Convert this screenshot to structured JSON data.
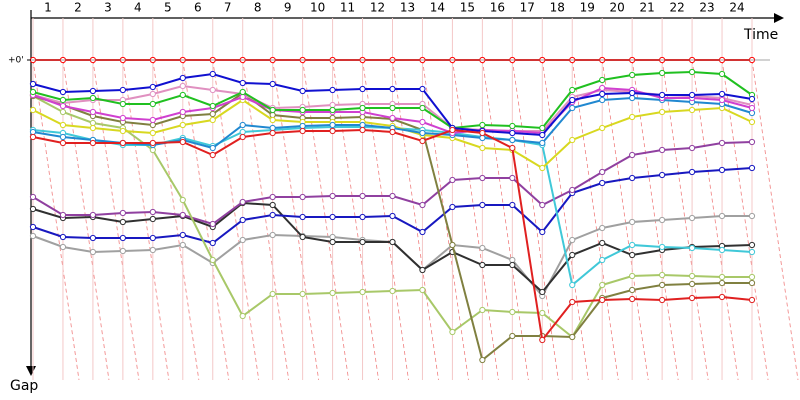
{
  "chart_data": {
    "type": "line",
    "x_label": "Time",
    "y_label": "Gap",
    "x": [
      0,
      1,
      2,
      3,
      4,
      5,
      6,
      7,
      8,
      9,
      10,
      11,
      12,
      13,
      14,
      15,
      16,
      17,
      18,
      19,
      20,
      21,
      22,
      23,
      24
    ],
    "xlim": [
      0,
      24
    ],
    "xticks": [
      {
        "value": 0.5,
        "label": "1"
      },
      {
        "value": 1.5,
        "label": "2"
      },
      {
        "value": 2.5,
        "label": "3"
      },
      {
        "value": 3.5,
        "label": "4"
      },
      {
        "value": 4.5,
        "label": "5"
      },
      {
        "value": 5.5,
        "label": "6"
      },
      {
        "value": 6.5,
        "label": "7"
      },
      {
        "value": 7.5,
        "label": "8"
      },
      {
        "value": 8.5,
        "label": "9"
      },
      {
        "value": 9.5,
        "label": "10"
      },
      {
        "value": 10.5,
        "label": "11"
      },
      {
        "value": 11.5,
        "label": "12"
      },
      {
        "value": 12.5,
        "label": "13"
      },
      {
        "value": 13.5,
        "label": "14"
      },
      {
        "value": 14.5,
        "label": "15"
      },
      {
        "value": 15.5,
        "label": "16"
      },
      {
        "value": 16.5,
        "label": "17"
      },
      {
        "value": 17.5,
        "label": "18"
      },
      {
        "value": 18.5,
        "label": "19"
      },
      {
        "value": 19.5,
        "label": "20"
      },
      {
        "value": 20.5,
        "label": "21"
      },
      {
        "value": 21.5,
        "label": "22"
      },
      {
        "value": 22.5,
        "label": "23"
      },
      {
        "value": 23.5,
        "label": "24"
      }
    ],
    "ylim": [
      -42,
      330
    ],
    "yticks": [
      {
        "value": 0,
        "label": "+0'"
      }
    ],
    "series": [
      {
        "color": "#ff0000",
        "values": [
          0,
          0,
          0,
          0,
          0,
          0,
          0,
          0,
          0,
          0,
          0,
          0,
          0,
          0,
          0,
          0,
          0,
          0,
          0,
          0,
          0,
          0,
          0,
          0,
          0
        ]
      },
      {
        "color": "#a0a0a0",
        "values": [
          176,
          187,
          192,
          191,
          190,
          185,
          203,
          180,
          175,
          176,
          177,
          180,
          182,
          210,
          185,
          188,
          200,
          236,
          180,
          168,
          162,
          160,
          158,
          156,
          156
        ]
      },
      {
        "color": "#303030",
        "values": [
          149,
          158,
          157,
          162,
          159,
          156,
          167,
          143,
          145,
          177,
          182,
          182,
          182,
          210,
          192,
          205,
          205,
          232,
          195,
          183,
          195,
          190,
          187,
          186,
          185
        ]
      },
      {
        "color": "#1818c0",
        "values": [
          167,
          177,
          178,
          178,
          178,
          175,
          183,
          160,
          155,
          157,
          157,
          157,
          156,
          172,
          147,
          145,
          145,
          172,
          133,
          123,
          118,
          115,
          112,
          110,
          108
        ]
      },
      {
        "color": "#9040a0",
        "values": [
          137,
          155,
          155,
          153,
          152,
          155,
          164,
          142,
          137,
          137,
          136,
          136,
          136,
          145,
          120,
          118,
          118,
          145,
          130,
          112,
          95,
          90,
          88,
          83,
          82
        ]
      },
      {
        "color": "#a8c868",
        "values": [
          36,
          52,
          63,
          68,
          90,
          140,
          200,
          256,
          234,
          234,
          233,
          232,
          231,
          230,
          272,
          250,
          252,
          253,
          277,
          225,
          216,
          215,
          216,
          217,
          217
        ]
      },
      {
        "color": "#808040",
        "values": [
          36,
          45,
          56,
          62,
          65,
          56,
          54,
          33,
          55,
          58,
          58,
          57,
          59,
          70,
          185,
          300,
          276,
          276,
          277,
          238,
          230,
          225,
          224,
          223,
          223
        ]
      },
      {
        "color": "#40c8d8",
        "values": [
          70,
          73,
          80,
          85,
          85,
          78,
          86,
          72,
          70,
          68,
          67,
          67,
          68,
          70,
          73,
          77,
          80,
          85,
          225,
          200,
          185,
          187,
          188,
          190,
          192
        ]
      },
      {
        "color": "#d8d820",
        "values": [
          50,
          65,
          68,
          71,
          73,
          65,
          60,
          40,
          60,
          62,
          62,
          62,
          66,
          75,
          78,
          88,
          90,
          108,
          80,
          68,
          57,
          52,
          50,
          48,
          62
        ]
      },
      {
        "color": "#2088d0",
        "values": [
          72,
          77,
          80,
          83,
          85,
          80,
          88,
          65,
          68,
          66,
          65,
          65,
          68,
          73,
          75,
          78,
          80,
          83,
          48,
          40,
          38,
          40,
          42,
          44,
          53
        ]
      },
      {
        "color": "#e090c0",
        "values": [
          35,
          43,
          40,
          40,
          34,
          26,
          30,
          34,
          48,
          47,
          45,
          44,
          44,
          44,
          68,
          70,
          71,
          71,
          37,
          30,
          32,
          35,
          36,
          38,
          45
        ]
      },
      {
        "color": "#d040d0",
        "values": [
          35,
          46,
          52,
          58,
          60,
          52,
          48,
          37,
          50,
          52,
          52,
          52,
          58,
          62,
          73,
          70,
          71,
          73,
          42,
          28,
          30,
          38,
          38,
          40,
          48
        ]
      },
      {
        "color": "#20c020",
        "values": [
          32,
          40,
          38,
          44,
          44,
          35,
          46,
          32,
          50,
          50,
          50,
          48,
          48,
          48,
          68,
          65,
          66,
          68,
          30,
          20,
          15,
          13,
          12,
          14,
          35
        ]
      },
      {
        "color": "#1010d0",
        "values": [
          24,
          32,
          31,
          30,
          27,
          18,
          14,
          23,
          24,
          31,
          30,
          29,
          29,
          29,
          68,
          71,
          73,
          75,
          40,
          34,
          33,
          35,
          35,
          34,
          39
        ]
      },
      {
        "color": "#e02020",
        "values": [
          77,
          83,
          83,
          83,
          83,
          82,
          95,
          77,
          73,
          71,
          71,
          70,
          72,
          81,
          70,
          73,
          88,
          280,
          242,
          240,
          239,
          240,
          238,
          237,
          240
        ]
      }
    ]
  }
}
